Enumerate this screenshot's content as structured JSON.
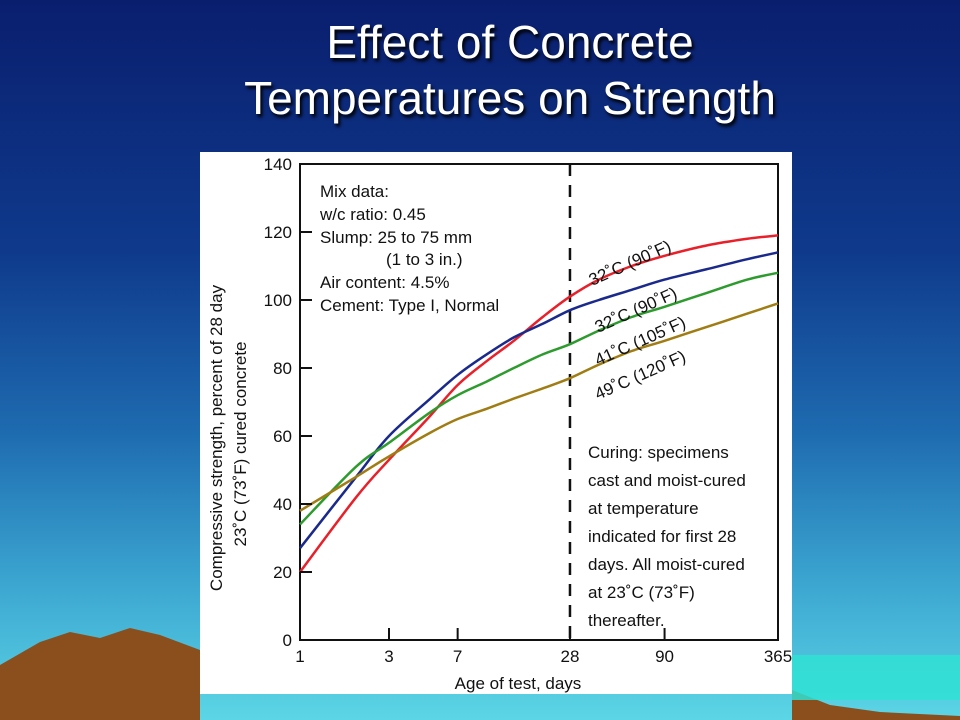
{
  "slide": {
    "title_line1": "Effect of Concrete",
    "title_line2": "Temperatures on Strength"
  },
  "colors": {
    "background_top": "#0a1e6e",
    "background_bottom": "#5cd6e6",
    "mountains": "#8a4f1c"
  },
  "chart_data": {
    "type": "line",
    "xlabel": "Age of test, days",
    "ylabel_line1": "Compressive strength, percent of 28 day",
    "ylabel_line2": "23˚C (73˚F) cured concrete",
    "x_scale": "log",
    "x_ticks": [
      1,
      3,
      7,
      28,
      90,
      365
    ],
    "x_tick_labels": [
      "1",
      "3",
      "7",
      "28",
      "90",
      "365"
    ],
    "ylim": [
      0,
      140
    ],
    "y_ticks": [
      0,
      20,
      40,
      60,
      80,
      100,
      120,
      140
    ],
    "y_tick_labels": [
      "0",
      "20",
      "40",
      "60",
      "80",
      "100",
      "120",
      "140"
    ],
    "grid": false,
    "reference_line": {
      "x": 28,
      "style": "dashed"
    },
    "series": [
      {
        "name": "32˚C (90˚F)",
        "color": "#e8202a",
        "x": [
          1,
          2,
          3,
          5,
          7,
          10,
          14,
          20,
          28,
          40,
          60,
          90,
          150,
          250,
          365
        ],
        "y": [
          20,
          42,
          53,
          66,
          75,
          82,
          88,
          95,
          101,
          106,
          110,
          113,
          116,
          118,
          119
        ]
      },
      {
        "name": "32˚C (90˚F)",
        "color": "#1a2a8c",
        "x": [
          1,
          2,
          3,
          5,
          7,
          10,
          14,
          20,
          28,
          40,
          60,
          90,
          150,
          250,
          365
        ],
        "y": [
          27,
          48,
          60,
          71,
          78,
          84,
          89,
          93,
          97,
          100,
          103,
          106,
          109,
          112,
          114
        ]
      },
      {
        "name": "41˚C (105˚F)",
        "color": "#2e9b2e",
        "x": [
          1,
          2,
          3,
          5,
          7,
          10,
          14,
          20,
          28,
          40,
          60,
          90,
          150,
          250,
          365
        ],
        "y": [
          34,
          51,
          58,
          67,
          72,
          76,
          80,
          84,
          87,
          91,
          95,
          98,
          102,
          106,
          108
        ]
      },
      {
        "name": "49˚C (120˚F)",
        "color": "#a07d14",
        "x": [
          1,
          2,
          3,
          5,
          7,
          10,
          14,
          20,
          28,
          40,
          60,
          90,
          150,
          250,
          365
        ],
        "y": [
          38,
          48,
          54,
          61,
          65,
          68,
          71,
          74,
          77,
          81,
          85,
          88,
          92,
          96,
          99
        ]
      }
    ],
    "annotations": {
      "mix_data": [
        "Mix data:",
        "w/c ratio: 0.45",
        "Slump: 25 to 75 mm",
        "(1 to 3 in.)",
        "Air content: 4.5%",
        "Cement: Type I, Normal"
      ],
      "curing": [
        "Curing: specimens",
        "cast and moist-cured",
        "at temperature",
        "indicated for first 28",
        "days. All moist-cured",
        "at 23˚C (73˚F)",
        "thereafter."
      ]
    }
  }
}
